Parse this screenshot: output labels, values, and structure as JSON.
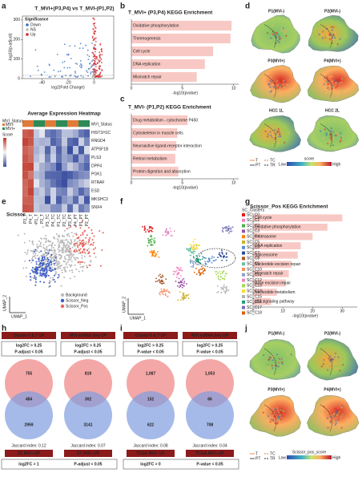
{
  "panel_labels": [
    "a",
    "b",
    "c",
    "d",
    "e",
    "f",
    "g",
    "h",
    "i",
    "j"
  ],
  "chart_data": [
    {
      "type": "scatter",
      "title": "T_MVI+(P3,P4) vs T_MVI-(P1,P2)",
      "xlabel": "log2(Fold Change)",
      "ylabel": "-log10(p-adjust)",
      "xlim": [
        -55,
        15
      ],
      "ylim": [
        0,
        320
      ],
      "xticks": [
        -40,
        -20,
        0
      ],
      "yticks": [
        0,
        100,
        200,
        300
      ],
      "legend_title": "Significance",
      "legend": [
        {
          "name": "Down",
          "color": "#3b6fc4"
        },
        {
          "name": "NS",
          "color": "#bdbdbd"
        },
        {
          "name": "Up",
          "color": "#d62728"
        }
      ]
    },
    {
      "type": "bar",
      "title": "T_MVI+ (P3,P4) KEGG Enrichment",
      "xlabel": "-log10(pvalue)",
      "categories": [
        "Oxidative phosphorylation",
        "Thermogenesis",
        "Cell cycle",
        "DNA replication",
        "Mismatch repair"
      ],
      "values": [
        9.8,
        9.7,
        8.0,
        7.2,
        6.4
      ],
      "color": "#f8c9c4",
      "xlim": [
        0,
        10.5
      ],
      "xticks": [
        0,
        5,
        10
      ]
    },
    {
      "type": "bar",
      "title": "T_MVI- (P1,P2) KEGG Enrichment",
      "xlabel": "-log10(pvalue)",
      "categories": [
        "Drug metabolism - cytochrome P450",
        "Cytoskeleton in muscle cells",
        "Neuroactive ligand-receptor interaction",
        "Retinol metabolism",
        "Protein digestion and absorption"
      ],
      "values": [
        5.5,
        4.5,
        4.4,
        4.3,
        4.6
      ],
      "color": "#f8c9c4",
      "xlim": [
        0,
        10.5
      ],
      "xticks": [
        0,
        5,
        10
      ]
    },
    {
      "type": "bar",
      "title": "Scissor_Pos KEGG Enrichment",
      "xlabel": "-log10(pvalue)",
      "categories": [
        "Cell cycle",
        "Oxidative phosphorylation",
        "Proteasome",
        "DNA replication",
        "Spliceosome",
        "Nucleotide excision repair",
        "Mismatch repair",
        "Base excision repair",
        "Nucleotide metabolism",
        "p53 signaling pathway"
      ],
      "values": [
        30,
        25,
        20,
        16,
        15,
        13,
        12,
        11,
        8,
        6
      ],
      "color": "#f8c9c4",
      "xlim": [
        0,
        35
      ],
      "xticks": [
        0,
        10,
        20,
        30
      ]
    }
  ],
  "heatmap": {
    "title": "Average Expression Heatmap",
    "annotation_title": "MVI_Status",
    "annotation_levels": [
      "MVI-",
      "MVI+"
    ],
    "legend_title": "Score",
    "rows": [
      "MVI_Status",
      "HIST1H1C",
      "RNGD4",
      "ATP5F1B",
      "PLS3",
      "DPP4",
      "PGK1",
      "RTRAF",
      "ESD",
      "MKSHC3",
      "SNX4"
    ],
    "columns": [
      "P3_T",
      "P4_T",
      "P1_T",
      "P2_T",
      "P3_TC",
      "P4_TC",
      "P1_TC",
      "P2_TC",
      "P3_PT",
      "P4_PT",
      "P1_PT",
      "P2_PT"
    ]
  },
  "spatial_d": {
    "sections": [
      "P1(MVI-)",
      "P2(MVI-)",
      "P3(MVI+)",
      "P4(MVI+)",
      "HCC 1L",
      "HCC 2L"
    ],
    "regions": [
      "T",
      "TC",
      "PT",
      "TR"
    ],
    "score_title": "score",
    "low": "Low",
    "high": "High"
  },
  "umap_e": {
    "title": "Scissor",
    "xlabel": "UMAP_1",
    "ylabel": "UMAP_2",
    "legend": [
      "Background",
      "Scissor_Neg",
      "Scissor_Pos"
    ]
  },
  "umap_f": {
    "legend_title": "SC_Clusters",
    "xlabel": "UMAP_1",
    "ylabel": "UMAP_2",
    "clusters": [
      "SC_C0",
      "SC_C1",
      "SC_C2",
      "SC_C3",
      "SC_C4",
      "SC_C5",
      "SC_C6",
      "SC_C7",
      "SC_C8",
      "SC_C9",
      "SC_C10",
      "SC_C11",
      "SC_C12",
      "SC_C13",
      "SC_C14",
      "SC_C15",
      "SC_C16",
      "SC_C17",
      "SC_C18"
    ],
    "colors": [
      "#e41a1c",
      "#f781bf",
      "#4daf4a",
      "#984ea3",
      "#ff7f00",
      "#c9b22b",
      "#5a8fd1",
      "#2b4c9b",
      "#a65628",
      "#66c2a5",
      "#fc8d62",
      "#8da0cb",
      "#e78ac3",
      "#a6d854",
      "#ffd92f",
      "#b3b3b3",
      "#1b9e77",
      "#7570b3",
      "#d95f02"
    ]
  },
  "venn_h": {
    "sets": [
      {
        "top": "Cluster 6 & 7 UP",
        "criteria": [
          "log2FC > 0.25",
          "P-adjust < 0.05"
        ],
        "only_top": "755",
        "overlap": "484",
        "only_bottom": "2959",
        "jaccard": "Jaccard index: 0.12",
        "bottom": "ST MVI+ UP"
      },
      {
        "top": "MVI scRNA-Seq UP",
        "criteria": [
          "log2FC > 0.25",
          "P-adjust < 0.05"
        ],
        "only_top": "819",
        "overlap": "302",
        "only_bottom": "3141",
        "jaccard": "Jaccard index: 0.07",
        "bottom": "ST MVI+ UP"
      }
    ],
    "footer": [
      "log2FC > 1",
      "P-adjust < 0.05"
    ]
  },
  "venn_i": {
    "sets": [
      {
        "top": "Cluster 6 & 7 UP",
        "criteria": [
          "log2FC > 0.25",
          "P-value < 0.05"
        ],
        "only_top": "1,087",
        "overlap": "152",
        "only_bottom": "622",
        "jaccard": "Jaccard index: 0.08",
        "bottom": "TCGA MVI+ UP"
      },
      {
        "top": "MVI scRNA-Seq UP",
        "criteria": [
          "log2FC > 0.25",
          "P-value < 0.05"
        ],
        "only_top": "1,053",
        "overlap": "66",
        "only_bottom": "708",
        "jaccard": "Jaccard index: 0.04",
        "bottom": "TCGA MVI+ UP"
      }
    ],
    "footer": [
      "log2FC > 0",
      "P-value < 0.05"
    ]
  },
  "spatial_j": {
    "sections": [
      "P1(MVI-)",
      "P2(MVI-)",
      "P3(MVI+)",
      "P4(MVI+)"
    ],
    "regions": [
      "T",
      "TC",
      "PT",
      "TR"
    ],
    "score_title": "Scissor_pos_score",
    "low": "Low",
    "high": "High"
  }
}
